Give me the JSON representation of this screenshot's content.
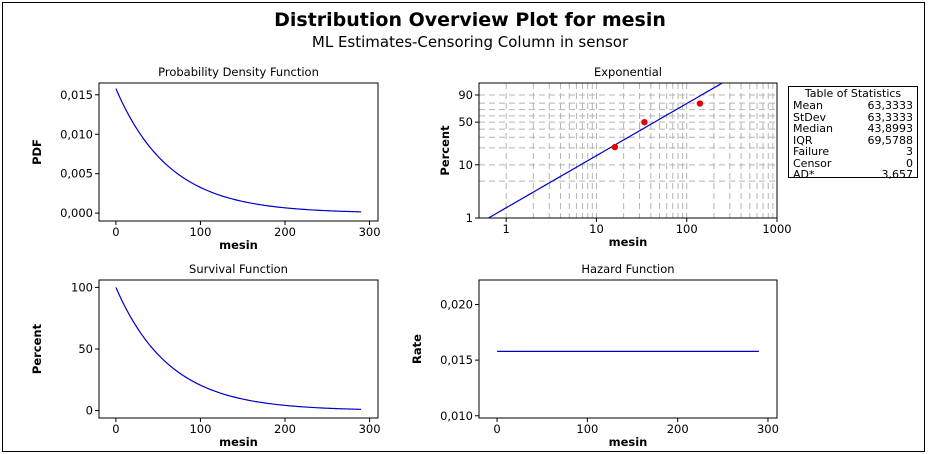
{
  "figure": {
    "title": "Distribution Overview Plot for mesin",
    "subtitle": "ML Estimates-Censoring Column in sensor"
  },
  "stats_table": {
    "title": "Table of Statistics",
    "rows": [
      {
        "label": "Mean",
        "value": "63,3333"
      },
      {
        "label": "StDev",
        "value": "63,3333"
      },
      {
        "label": "Median",
        "value": "43,8993"
      },
      {
        "label": "IQR",
        "value": "69,5788"
      },
      {
        "label": "Failure",
        "value": "3"
      },
      {
        "label": "Censor",
        "value": "0"
      },
      {
        "label": "AD*",
        "value": "3,657"
      }
    ]
  },
  "colors": {
    "curve": "#0000c8",
    "points": "#e00000",
    "grid": "#b4b4b4",
    "frame": "#000000"
  },
  "chart_data": [
    {
      "id": "pdf",
      "type": "line",
      "title": "Probability Density Function",
      "xlabel": "mesin",
      "ylabel": "PDF",
      "xlim": [
        -20,
        310
      ],
      "ylim": [
        -0.001,
        0.0165
      ],
      "xticks": [
        0,
        100,
        200,
        300
      ],
      "xtick_labels": [
        "0",
        "100",
        "200",
        "300"
      ],
      "yticks": [
        0.0,
        0.005,
        0.01,
        0.015
      ],
      "ytick_labels": [
        "0,000",
        "0,005",
        "0,010",
        "0,015"
      ],
      "function": "exp_pdf",
      "mean": 63.3333,
      "x_range": [
        0,
        290
      ]
    },
    {
      "id": "prob",
      "type": "scatter",
      "title": "Exponential",
      "xlabel": "mesin",
      "ylabel": "Percent",
      "x_scale": "log",
      "xlim": [
        0.5,
        1000
      ],
      "xticks": [
        1,
        10,
        100,
        1000
      ],
      "xtick_labels": [
        "1",
        "10",
        "100",
        "1000"
      ],
      "y_scale": "exponential-probability",
      "ylim": [
        1,
        98
      ],
      "yticks": [
        1,
        10,
        50,
        90
      ],
      "ytick_labels": [
        "1",
        "10",
        "50",
        "90"
      ],
      "grid": true,
      "points": [
        {
          "x": 16,
          "y": 20.6
        },
        {
          "x": 34,
          "y": 50.0
        },
        {
          "x": 140,
          "y": 79.4
        }
      ],
      "fit_line": {
        "mean": 63.3333
      }
    },
    {
      "id": "survival",
      "type": "line",
      "title": "Survival Function",
      "xlabel": "mesin",
      "ylabel": "Percent",
      "xlim": [
        -20,
        310
      ],
      "ylim": [
        -6,
        106
      ],
      "xticks": [
        0,
        100,
        200,
        300
      ],
      "xtick_labels": [
        "0",
        "100",
        "200",
        "300"
      ],
      "yticks": [
        0,
        50,
        100
      ],
      "ytick_labels": [
        "0",
        "50",
        "100"
      ],
      "function": "exp_survival",
      "mean": 63.3333,
      "x_range": [
        0,
        290
      ]
    },
    {
      "id": "hazard",
      "type": "line",
      "title": "Hazard Function",
      "xlabel": "mesin",
      "ylabel": "Rate",
      "xlim": [
        -20,
        310
      ],
      "ylim": [
        0.0098,
        0.0222
      ],
      "xticks": [
        0,
        100,
        200,
        300
      ],
      "xtick_labels": [
        "0",
        "100",
        "200",
        "300"
      ],
      "yticks": [
        0.01,
        0.015,
        0.02
      ],
      "ytick_labels": [
        "0,010",
        "0,015",
        "0,020"
      ],
      "function": "exp_hazard",
      "mean": 63.3333,
      "x_range": [
        0,
        290
      ]
    }
  ]
}
